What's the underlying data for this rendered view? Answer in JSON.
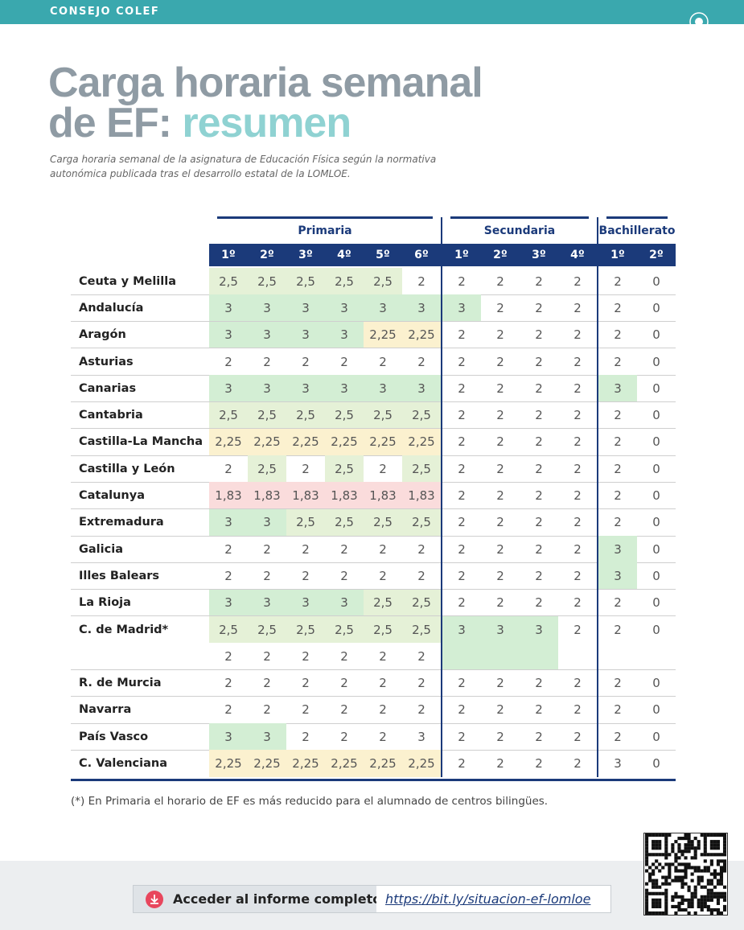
{
  "header": {
    "brand": "CONSEJO COLEF"
  },
  "title": {
    "line1": "Carga horaria semanal",
    "line2a": "de EF:",
    "line2b": "resumen"
  },
  "subtitle": "Carga horaria semanal de la asignatura de Educación Física según la normativa autonómica publicada tras el desarrollo estatal de la LOMLOE.",
  "table": {
    "groups": [
      {
        "name": "Primaria",
        "columns": [
          "1º",
          "2º",
          "3º",
          "4º",
          "5º",
          "6º"
        ]
      },
      {
        "name": "Secundaria",
        "columns": [
          "1º",
          "2º",
          "3º",
          "4º"
        ]
      },
      {
        "name": "Bachillerato",
        "columns": [
          "1º",
          "2º"
        ]
      }
    ],
    "palette": {
      "3": "#d3eed4",
      "2,5": "#e5f1d7",
      "2,25": "#fbf1cf",
      "1,83": "#fadcdc"
    },
    "rows": [
      {
        "region": "Ceuta y Melilla",
        "cells": [
          "2,5",
          "2,5",
          "2,5",
          "2,5",
          "2,5",
          "2",
          "2",
          "2",
          "2",
          "2",
          "2",
          "0"
        ]
      },
      {
        "region": "Andalucía",
        "cells": [
          "3",
          "3",
          "3",
          "3",
          "3",
          "3",
          "3",
          "2",
          "2",
          "2",
          "2",
          "0"
        ]
      },
      {
        "region": "Aragón",
        "cells": [
          "3",
          "3",
          "3",
          "3",
          "2,25",
          "2,25",
          "2",
          "2",
          "2",
          "2",
          "2",
          "0"
        ]
      },
      {
        "region": "Asturias",
        "cells": [
          "2",
          "2",
          "2",
          "2",
          "2",
          "2",
          "2",
          "2",
          "2",
          "2",
          "2",
          "0"
        ]
      },
      {
        "region": "Canarias",
        "cells": [
          "3",
          "3",
          "3",
          "3",
          "3",
          "3",
          "2",
          "2",
          "2",
          "2",
          "3",
          "0"
        ]
      },
      {
        "region": "Cantabria",
        "cells": [
          "2,5",
          "2,5",
          "2,5",
          "2,5",
          "2,5",
          "2,5",
          "2",
          "2",
          "2",
          "2",
          "2",
          "0"
        ]
      },
      {
        "region": "Castilla-La Mancha",
        "cells": [
          "2,25",
          "2,25",
          "2,25",
          "2,25",
          "2,25",
          "2,25",
          "2",
          "2",
          "2",
          "2",
          "2",
          "0"
        ]
      },
      {
        "region": "Castilla y León",
        "cells": [
          "2",
          "2,5",
          "2",
          "2,5",
          "2",
          "2,5",
          "2",
          "2",
          "2",
          "2",
          "2",
          "0"
        ]
      },
      {
        "region": "Catalunya",
        "cells": [
          "1,83",
          "1,83",
          "1,83",
          "1,83",
          "1,83",
          "1,83",
          "2",
          "2",
          "2",
          "2",
          "2",
          "0"
        ]
      },
      {
        "region": "Extremadura",
        "cells": [
          "3",
          "3",
          "2,5",
          "2,5",
          "2,5",
          "2,5",
          "2",
          "2",
          "2",
          "2",
          "2",
          "0"
        ]
      },
      {
        "region": "Galicia",
        "cells": [
          "2",
          "2",
          "2",
          "2",
          "2",
          "2",
          "2",
          "2",
          "2",
          "2",
          "3",
          "0"
        ]
      },
      {
        "region": "Illes Balears",
        "cells": [
          "2",
          "2",
          "2",
          "2",
          "2",
          "2",
          "2",
          "2",
          "2",
          "2",
          "3",
          "0"
        ]
      },
      {
        "region": "La Rioja",
        "cells": [
          "3",
          "3",
          "3",
          "3",
          "2,5",
          "2,5",
          "2",
          "2",
          "2",
          "2",
          "2",
          "0"
        ]
      },
      {
        "region": "C. de Madrid*",
        "cells": [
          "2,5",
          "2,5",
          "2,5",
          "2,5",
          "2,5",
          "2,5",
          "3",
          "3",
          "3",
          "2",
          "2",
          "0"
        ],
        "extra": [
          "2",
          "2",
          "2",
          "2",
          "2",
          "2"
        ]
      },
      {
        "region": "R. de Murcia",
        "cells": [
          "2",
          "2",
          "2",
          "2",
          "2",
          "2",
          "2",
          "2",
          "2",
          "2",
          "2",
          "0"
        ]
      },
      {
        "region": "Navarra",
        "cells": [
          "2",
          "2",
          "2",
          "2",
          "2",
          "2",
          "2",
          "2",
          "2",
          "2",
          "2",
          "0"
        ]
      },
      {
        "region": "País Vasco",
        "cells": [
          "3",
          "3",
          "2",
          "2",
          "2",
          "3",
          "2",
          "2",
          "2",
          "2",
          "2",
          "0"
        ],
        "unshaded": [
          5
        ]
      },
      {
        "region": "C. Valenciana",
        "cells": [
          "2,25",
          "2,25",
          "2,25",
          "2,25",
          "2,25",
          "2,25",
          "2",
          "2",
          "2",
          "2",
          "3",
          "0"
        ],
        "unshaded": [
          10
        ]
      }
    ]
  },
  "footnote": "(*) En Primaria el horario de EF es más reducido para el alumnado de centros bilingües.",
  "footer": {
    "cta": "Acceder al informe completo",
    "link": "https://bit.ly/situacion-ef-lomloe"
  }
}
